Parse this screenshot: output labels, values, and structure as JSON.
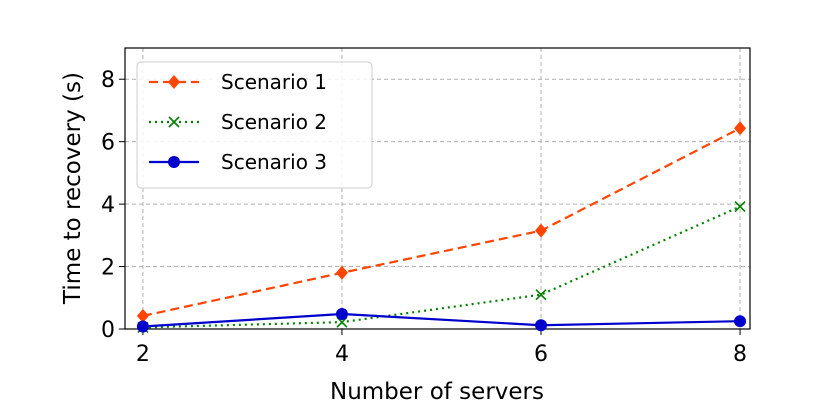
{
  "chart_data": {
    "type": "line",
    "x_label": "Number of servers",
    "y_label": "Time to recovery (s)",
    "x": [
      2,
      4,
      6,
      8
    ],
    "series": [
      {
        "name": "Scenario 1",
        "color": "#ff4500",
        "linestyle": "dashed",
        "marker": "diamond",
        "values": [
          0.42,
          1.8,
          3.15,
          6.43
        ]
      },
      {
        "name": "Scenario 2",
        "color": "#008000",
        "linestyle": "dotted",
        "marker": "x",
        "values": [
          0.05,
          0.22,
          1.1,
          3.92
        ]
      },
      {
        "name": "Scenario 3",
        "color": "#0000cd",
        "linestyle": "solid",
        "marker": "circle",
        "values": [
          0.08,
          0.48,
          0.12,
          0.25
        ]
      }
    ],
    "xlim": [
      1.82,
      8.1
    ],
    "ylim": [
      0,
      9
    ],
    "xticks": [
      2,
      4,
      6,
      8
    ],
    "yticks": [
      0,
      2,
      4,
      6,
      8
    ],
    "grid": true,
    "legend": "upper left"
  }
}
